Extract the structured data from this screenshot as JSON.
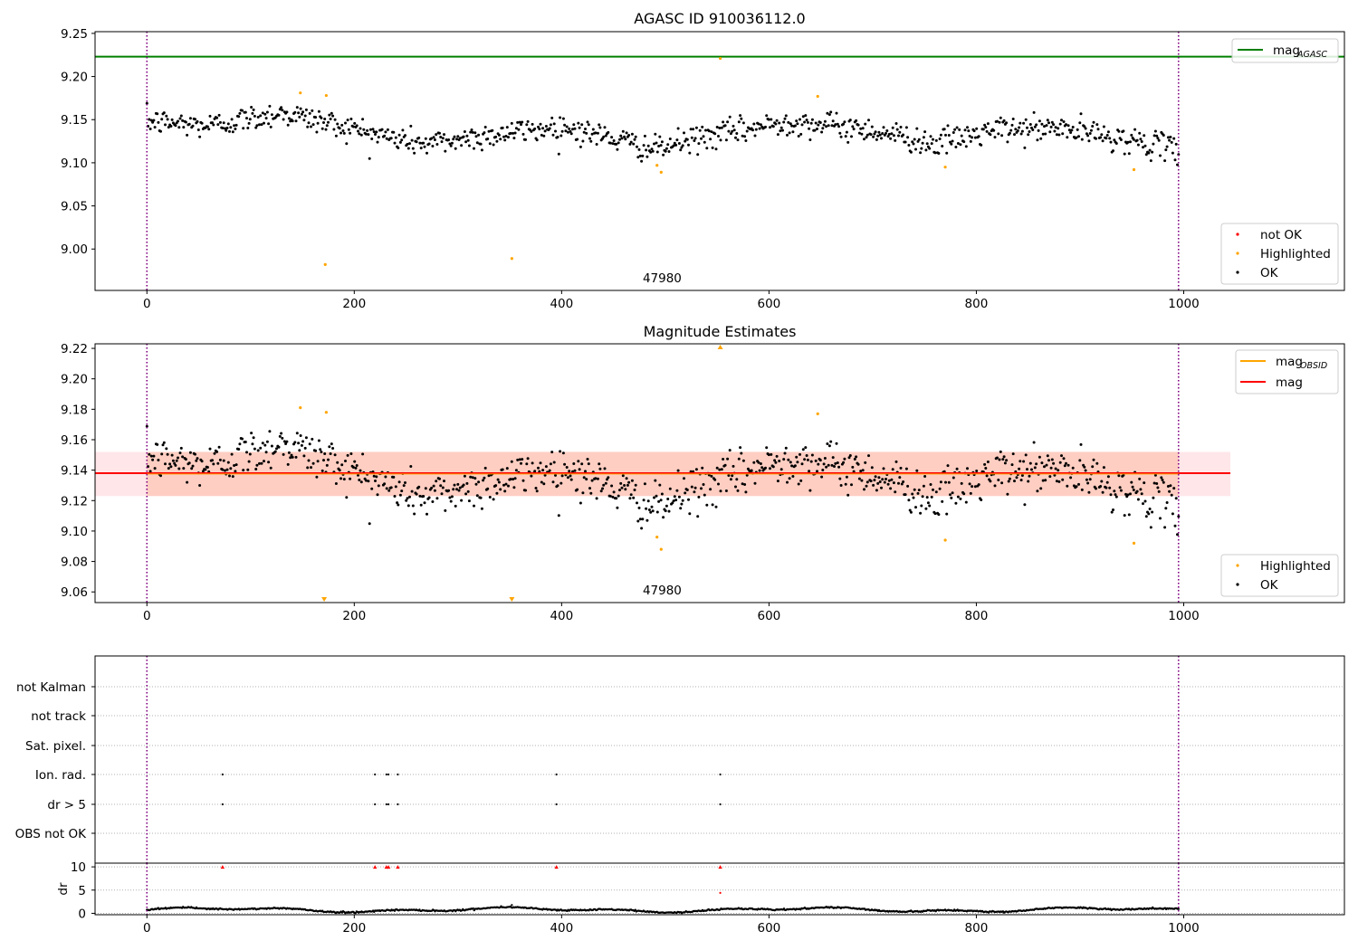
{
  "chart_data": [
    {
      "type": "scatter",
      "title": "AGASC ID 910036112.0",
      "xlabel": "",
      "ylabel": "",
      "xlim": [
        -50,
        1155
      ],
      "ylim": [
        8.952,
        9.252
      ],
      "xticks": [
        0,
        200,
        400,
        600,
        800,
        1000
      ],
      "yticks": [
        9.0,
        9.05,
        9.1,
        9.15,
        9.2,
        9.25
      ],
      "ytick_labels": [
        "9.00",
        "9.05",
        "9.10",
        "9.15",
        "9.20",
        "9.25"
      ],
      "vlines": [
        0,
        995
      ],
      "hline": {
        "y": 9.223,
        "x_range": [
          -50,
          1155
        ],
        "color": "#008000"
      },
      "annotation": {
        "text": "47980",
        "x": 497,
        "y": 8.955
      },
      "ok_profile": [
        [
          0,
          9.148
        ],
        [
          60,
          9.143
        ],
        [
          130,
          9.158
        ],
        [
          180,
          9.145
        ],
        [
          240,
          9.128
        ],
        [
          270,
          9.122
        ],
        [
          330,
          9.132
        ],
        [
          400,
          9.142
        ],
        [
          450,
          9.128
        ],
        [
          490,
          9.115
        ],
        [
          530,
          9.128
        ],
        [
          620,
          9.148
        ],
        [
          700,
          9.138
        ],
        [
          760,
          9.122
        ],
        [
          820,
          9.138
        ],
        [
          880,
          9.14
        ],
        [
          940,
          9.128
        ],
        [
          995,
          9.115
        ]
      ],
      "ok_count": 900,
      "ok_scatter": 0.01,
      "highlighted": [
        [
          148,
          9.181
        ],
        [
          173,
          9.178
        ],
        [
          172,
          8.982
        ],
        [
          352,
          8.989
        ],
        [
          492,
          9.097
        ],
        [
          496,
          9.089
        ],
        [
          553,
          9.221
        ],
        [
          647,
          9.177
        ],
        [
          770,
          9.095
        ],
        [
          952,
          9.092
        ]
      ],
      "legend_top": [
        {
          "name": "mag",
          "sub": "AGASC",
          "color": "#008000"
        }
      ],
      "legend_bottom": [
        {
          "name": "not OK",
          "color": "#ff0000"
        },
        {
          "name": "Highlighted",
          "color": "#ffa500"
        },
        {
          "name": "OK",
          "color": "#000000"
        }
      ]
    },
    {
      "type": "scatter",
      "title": "Magnitude Estimates",
      "xlabel": "",
      "ylabel": "",
      "xlim": [
        -50,
        1155
      ],
      "ylim": [
        9.053,
        9.223
      ],
      "xticks": [
        0,
        200,
        400,
        600,
        800,
        1000
      ],
      "yticks": [
        9.06,
        9.08,
        9.1,
        9.12,
        9.14,
        9.16,
        9.18,
        9.2,
        9.22
      ],
      "ytick_labels": [
        "9.06",
        "9.08",
        "9.10",
        "9.12",
        "9.14",
        "9.16",
        "9.18",
        "9.20",
        "9.22"
      ],
      "vlines": [
        0,
        995
      ],
      "band_outer": {
        "y": [
          9.123,
          9.152
        ],
        "x_range": [
          -50,
          1045
        ],
        "color": "#ffb6c1"
      },
      "band_inner": {
        "y": [
          9.123,
          9.152
        ],
        "x_range": [
          0,
          995
        ],
        "color": "#ffa07a"
      },
      "mag_line": {
        "y": 9.138,
        "x_range": [
          -50,
          1045
        ],
        "color": "#ff0000"
      },
      "annotation": {
        "text": "47980",
        "x": 497,
        "y": 9.057
      },
      "ok_profile": [
        [
          0,
          9.148
        ],
        [
          60,
          9.143
        ],
        [
          130,
          9.158
        ],
        [
          180,
          9.145
        ],
        [
          240,
          9.128
        ],
        [
          270,
          9.122
        ],
        [
          330,
          9.132
        ],
        [
          400,
          9.142
        ],
        [
          450,
          9.128
        ],
        [
          490,
          9.115
        ],
        [
          530,
          9.128
        ],
        [
          620,
          9.148
        ],
        [
          700,
          9.138
        ],
        [
          760,
          9.122
        ],
        [
          820,
          9.138
        ],
        [
          880,
          9.14
        ],
        [
          940,
          9.128
        ],
        [
          995,
          9.115
        ]
      ],
      "ok_count": 900,
      "ok_scatter": 0.01,
      "highlighted": [
        [
          148,
          9.181
        ],
        [
          173,
          9.178
        ],
        [
          492,
          9.096
        ],
        [
          496,
          9.088
        ],
        [
          647,
          9.177
        ],
        [
          770,
          9.094
        ],
        [
          952,
          9.092
        ]
      ],
      "off_scale_high": [
        [
          553,
          9.221
        ]
      ],
      "off_scale_low": [
        [
          171,
          9.054
        ],
        [
          352,
          9.054
        ]
      ],
      "legend_top": [
        {
          "name": "mag",
          "sub": "OBSID",
          "color": "#ffa500"
        },
        {
          "name": "mag",
          "sub": "",
          "color": "#ff0000"
        }
      ],
      "legend_bottom": [
        {
          "name": "Highlighted",
          "color": "#ffa500"
        },
        {
          "name": "OK",
          "color": "#000000"
        }
      ]
    },
    {
      "type": "scatter",
      "title": "",
      "xlim": [
        -50,
        1155
      ],
      "xticks": [
        0,
        200,
        400,
        600,
        800,
        1000
      ],
      "vlines": [
        0,
        995
      ],
      "flag_rows": [
        "not Kalman",
        "not track",
        "Sat. pixel.",
        "Ion. rad.",
        "dr > 5",
        "OBS not OK"
      ],
      "flag_points": {
        "Ion. rad.": [
          73,
          220,
          231,
          233,
          242,
          395,
          553
        ],
        "dr > 5": [
          73,
          220,
          231,
          233,
          242,
          395,
          553
        ]
      }
    },
    {
      "type": "scatter",
      "title": "",
      "ylabel": "dr",
      "xlim": [
        -50,
        1155
      ],
      "ylim": [
        -0.3,
        10.8
      ],
      "xticks": [
        0,
        200,
        400,
        600,
        800,
        1000
      ],
      "yticks": [
        0,
        5,
        10
      ],
      "ytick_labels": [
        "0",
        "5",
        "10"
      ],
      "vlines": [
        0,
        995
      ],
      "capped_points": [
        73,
        220,
        231,
        233,
        242,
        395,
        553
      ],
      "cap_value": 10,
      "extra_points": [
        [
          553,
          4.4
        ],
        [
          352,
          1.8
        ]
      ],
      "dr_count": 1000
    }
  ]
}
